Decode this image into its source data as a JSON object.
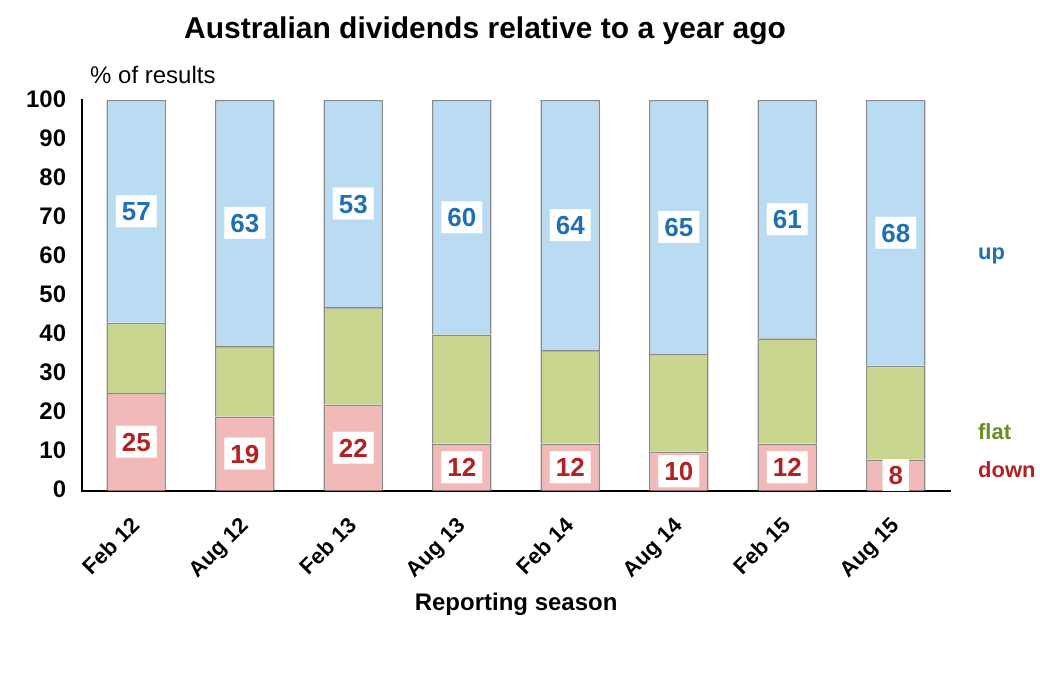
{
  "chart_data": {
    "type": "bar",
    "stacked": true,
    "title": "Australian dividends relative to a year ago",
    "ylabel": "% of results",
    "xlabel": "Reporting season",
    "categories": [
      "Feb 12",
      "Aug 12",
      "Feb 13",
      "Aug 13",
      "Feb 14",
      "Aug 14",
      "Feb 15",
      "Aug 15"
    ],
    "series": [
      {
        "name": "down",
        "color": "#f2b9b9",
        "values": [
          25,
          19,
          22,
          12,
          12,
          10,
          12,
          8
        ],
        "value_labels": [
          "25",
          "19",
          "22",
          "12",
          "12",
          "10",
          "12",
          "8"
        ]
      },
      {
        "name": "flat",
        "color": "#c9d68f",
        "values": [
          18,
          18,
          25,
          28,
          24,
          25,
          27,
          24
        ]
      },
      {
        "name": "up",
        "color": "#b9dcf2",
        "values": [
          57,
          63,
          53,
          60,
          64,
          65,
          61,
          68
        ],
        "value_labels": [
          "57",
          "63",
          "53",
          "60",
          "64",
          "65",
          "61",
          "68"
        ]
      }
    ],
    "ylim": [
      0,
      100
    ],
    "yticks": [
      0,
      10,
      20,
      30,
      40,
      50,
      60,
      70,
      80,
      90,
      100
    ],
    "grid": false,
    "legend": "right"
  }
}
